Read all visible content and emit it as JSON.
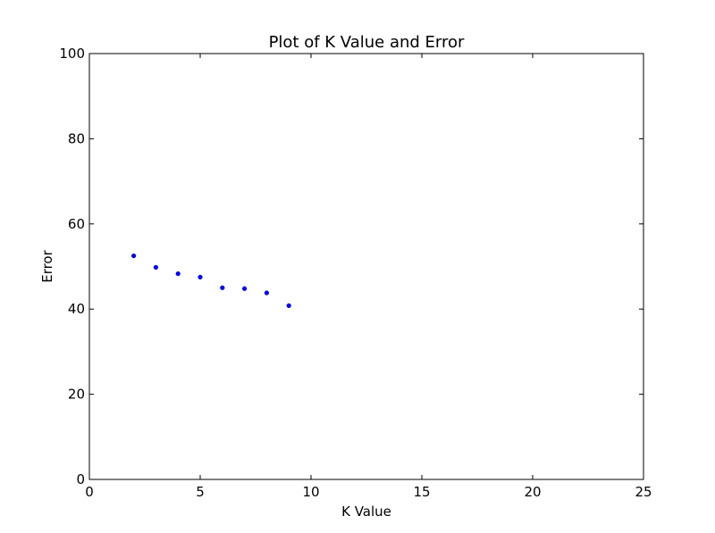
{
  "chart_data": {
    "type": "scatter",
    "title": "Plot of K Value and Error",
    "xlabel": "K Value",
    "ylabel": "Error",
    "xlim": [
      0,
      25
    ],
    "ylim": [
      0,
      100
    ],
    "xticks": [
      0,
      5,
      10,
      15,
      20,
      25
    ],
    "yticks": [
      0,
      20,
      40,
      60,
      80,
      100
    ],
    "grid": false,
    "marker_color": "#0000ff",
    "points": [
      {
        "x": 2,
        "y": 52.5
      },
      {
        "x": 3,
        "y": 49.8
      },
      {
        "x": 4,
        "y": 48.3
      },
      {
        "x": 5,
        "y": 47.5
      },
      {
        "x": 6,
        "y": 45.0
      },
      {
        "x": 7,
        "y": 44.8
      },
      {
        "x": 8,
        "y": 43.8
      },
      {
        "x": 9,
        "y": 40.8
      }
    ]
  }
}
